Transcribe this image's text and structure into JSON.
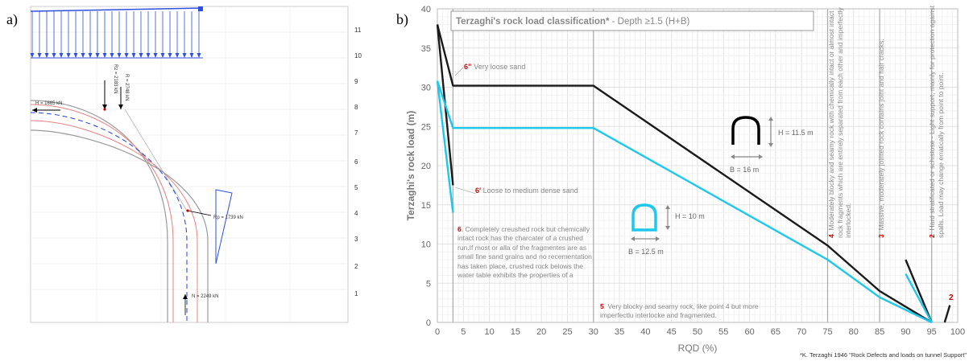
{
  "panel_a": {
    "label": "a)",
    "loads": {
      "h": "H = 1665 kN",
      "rz": "Rz = 2183 kN",
      "r": "R = 2748 kN",
      "rp": "Rp = 1739 kN",
      "n": "N = 2249 kN"
    },
    "scale_numbers": [
      "11",
      "10",
      "9",
      "8",
      "7",
      "6",
      "5",
      "4",
      "3",
      "2",
      "1"
    ],
    "colors": {
      "load_arrows": "#2f4fe0",
      "lining": "#e88080",
      "axis_dash": "#2040e0",
      "boundary": "#999999"
    }
  },
  "panel_b": {
    "label": "b)",
    "footnote": "*K. Terzaghi 1946 \"Rock Defects and loads on tunnel Support\"",
    "shape_labels": {
      "big_h": "H = 11.5 m",
      "big_b": "B = 16 m",
      "small_h": "H = 10 m",
      "small_b": "B = 12.5 m"
    },
    "annotations": [
      {
        "num": "6\"",
        "text": "Very loose sand"
      },
      {
        "num": "6'",
        "text": "Loose to medium dense sand"
      },
      {
        "num": "6",
        "text": "Completely creushed rock but chemically intact rock has the charcater of a crushed run.If most or alla of the fragmentes are as small fine sand grains and no recementation has taken place, crushed rock belows the water table exhibits the properties of a"
      },
      {
        "num": "5",
        "text": "Very blocky and seamy rock, like point 4 but more imperfectlu interlocke and fragmented."
      },
      {
        "num": "4",
        "text": "Moderately blocky and seamy rock with chemically intact or almost intact rock fragments which are entirely separated from each other and imperfectly interlocked."
      },
      {
        "num": "3",
        "text": "Massive, moderately jointed rock contains joint and hair cracks."
      },
      {
        "num": "2",
        "text": "Hard stratificated or schistose - Light support, mainly for protection against spalls. Load may change erratically from point to point."
      },
      {
        "num": "2",
        "text": ""
      }
    ]
  },
  "chart_data": {
    "type": "line",
    "title": "Terzaghi's rock load classification* - Depth ≥1.5 (H+B)",
    "title_bold": "Terzaghi's rock load classification*",
    "title_rest": " - Depth ≥1.5 (H+B)",
    "xlabel": "RQD (%)",
    "ylabel": "Terzaghi's rock load (m)",
    "xlim": [
      0,
      100
    ],
    "ylim": [
      0,
      40
    ],
    "xticks": [
      0,
      5,
      10,
      15,
      20,
      25,
      30,
      35,
      40,
      45,
      50,
      55,
      60,
      65,
      70,
      75,
      80,
      85,
      90,
      95,
      100
    ],
    "yticks": [
      0,
      5,
      10,
      15,
      20,
      25,
      30,
      35,
      40
    ],
    "grid": true,
    "vlines": [
      3,
      30,
      75,
      85,
      95
    ],
    "series": [
      {
        "color": "#1a1a1a",
        "points": [
          [
            0,
            38
          ],
          [
            3,
            30.2
          ],
          [
            30,
            30.2
          ],
          [
            75,
            9.8
          ],
          [
            85,
            4
          ],
          [
            95,
            0
          ]
        ]
      },
      {
        "color": "#1a1a1a",
        "points": [
          [
            0,
            38
          ],
          [
            3,
            17.5
          ]
        ]
      },
      {
        "color": "#1a1a1a",
        "points": [
          [
            90,
            8
          ],
          [
            95,
            0
          ]
        ]
      },
      {
        "color": "#1a1a1a",
        "points": [
          [
            97.5,
            0
          ],
          [
            98.5,
            2.2
          ]
        ]
      },
      {
        "color": "#1ec8ec",
        "points": [
          [
            0,
            30.8
          ],
          [
            3,
            24.8
          ],
          [
            30,
            24.8
          ],
          [
            75,
            8
          ],
          [
            85,
            3.2
          ],
          [
            95,
            0
          ]
        ]
      },
      {
        "color": "#1ec8ec",
        "points": [
          [
            0,
            30.8
          ],
          [
            3,
            14
          ]
        ]
      },
      {
        "color": "#1ec8ec",
        "points": [
          [
            90,
            6.2
          ],
          [
            95,
            0
          ]
        ]
      }
    ]
  }
}
